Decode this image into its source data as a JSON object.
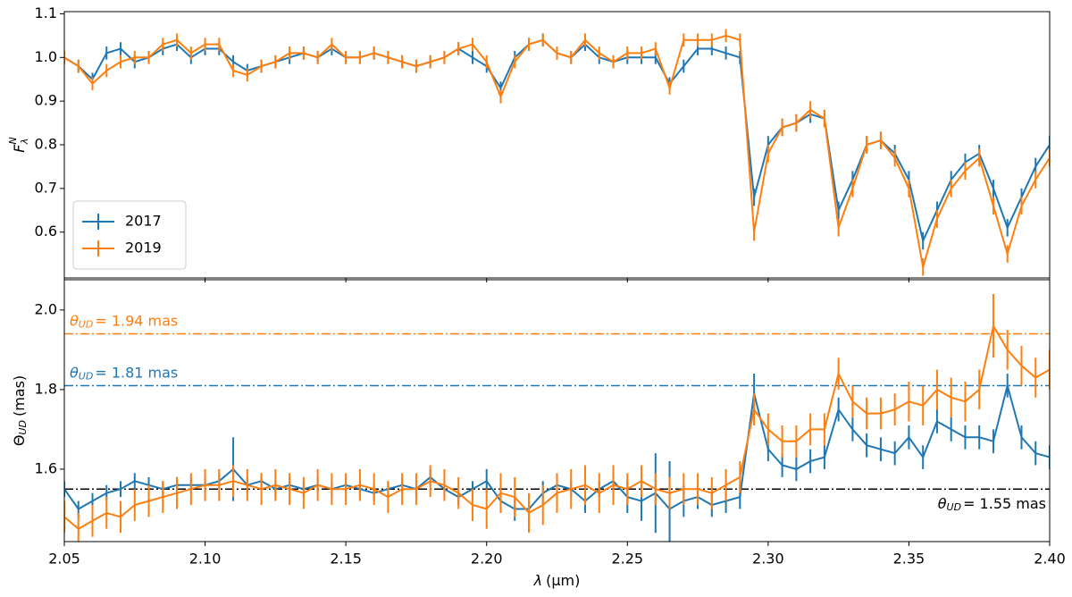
{
  "chart_data": [
    {
      "type": "line",
      "y_label": {
        "symbol": "F",
        "superscript": "N",
        "subscript": "λ"
      },
      "x": [
        2.05,
        2.055,
        2.06,
        2.065,
        2.07,
        2.075,
        2.08,
        2.085,
        2.09,
        2.095,
        2.1,
        2.105,
        2.11,
        2.115,
        2.12,
        2.125,
        2.13,
        2.135,
        2.14,
        2.145,
        2.15,
        2.155,
        2.16,
        2.165,
        2.17,
        2.175,
        2.18,
        2.185,
        2.19,
        2.195,
        2.2,
        2.205,
        2.21,
        2.215,
        2.22,
        2.225,
        2.23,
        2.235,
        2.24,
        2.245,
        2.25,
        2.255,
        2.26,
        2.265,
        2.27,
        2.275,
        2.28,
        2.285,
        2.29,
        2.295,
        2.3,
        2.305,
        2.31,
        2.315,
        2.32,
        2.325,
        2.33,
        2.335,
        2.34,
        2.345,
        2.35,
        2.355,
        2.36,
        2.365,
        2.37,
        2.375,
        2.38,
        2.385,
        2.39,
        2.395,
        2.4
      ],
      "series": [
        {
          "name": "2017",
          "color": "#1f77b4",
          "values": [
            1,
            0.98,
            0.95,
            1.01,
            1.02,
            0.99,
            1,
            1.02,
            1.03,
            1,
            1.02,
            1.02,
            0.99,
            0.97,
            0.98,
            0.99,
            1,
            1.01,
            1,
            1.02,
            1,
            1,
            1.01,
            1,
            0.99,
            0.98,
            0.99,
            1,
            1.02,
            1,
            0.98,
            0.93,
            1,
            1.03,
            1.04,
            1.01,
            1,
            1.03,
            1,
            0.99,
            1,
            1,
            1,
            0.94,
            0.98,
            1.02,
            1.02,
            1.01,
            1,
            0.68,
            0.8,
            0.84,
            0.85,
            0.87,
            0.86,
            0.65,
            0.72,
            0.8,
            0.81,
            0.78,
            0.72,
            0.58,
            0.65,
            0.72,
            0.76,
            0.78,
            0.7,
            0.61,
            0.68,
            0.75,
            0.8
          ],
          "errors": [
            0.015,
            0.015,
            0.015,
            0.015,
            0.015,
            0.015,
            0.015,
            0.015,
            0.015,
            0.015,
            0.015,
            0.015,
            0.015,
            0.015,
            0.015,
            0.015,
            0.015,
            0.015,
            0.015,
            0.015,
            0.015,
            0.015,
            0.015,
            0.015,
            0.015,
            0.015,
            0.015,
            0.015,
            0.015,
            0.015,
            0.015,
            0.015,
            0.015,
            0.015,
            0.015,
            0.015,
            0.015,
            0.015,
            0.015,
            0.015,
            0.015,
            0.015,
            0.015,
            0.015,
            0.015,
            0.015,
            0.015,
            0.015,
            0.015,
            0.02,
            0.02,
            0.02,
            0.02,
            0.02,
            0.02,
            0.02,
            0.02,
            0.02,
            0.02,
            0.02,
            0.02,
            0.02,
            0.02,
            0.02,
            0.02,
            0.02,
            0.02,
            0.02,
            0.02,
            0.02,
            0.02
          ]
        },
        {
          "name": "2019",
          "color": "#ff7f0e",
          "values": [
            1,
            0.98,
            0.94,
            0.97,
            0.99,
            1,
            1,
            1.03,
            1.04,
            1.01,
            1.03,
            1.03,
            0.97,
            0.96,
            0.98,
            0.99,
            1.01,
            1.01,
            1,
            1.03,
            1,
            1,
            1.01,
            1,
            0.99,
            0.98,
            0.99,
            1,
            1.02,
            1.03,
            0.99,
            0.91,
            0.99,
            1.03,
            1.04,
            1.01,
            1,
            1.04,
            1.01,
            0.99,
            1.01,
            1.01,
            1.02,
            0.93,
            1.04,
            1.04,
            1.04,
            1.05,
            1.04,
            0.6,
            0.78,
            0.84,
            0.85,
            0.88,
            0.86,
            0.61,
            0.7,
            0.8,
            0.81,
            0.77,
            0.7,
            0.52,
            0.63,
            0.7,
            0.74,
            0.77,
            0.66,
            0.55,
            0.66,
            0.72,
            0.77
          ],
          "errors": [
            0.015,
            0.015,
            0.015,
            0.015,
            0.015,
            0.015,
            0.015,
            0.015,
            0.015,
            0.015,
            0.015,
            0.015,
            0.015,
            0.015,
            0.015,
            0.015,
            0.015,
            0.015,
            0.015,
            0.015,
            0.015,
            0.015,
            0.015,
            0.015,
            0.015,
            0.015,
            0.015,
            0.015,
            0.015,
            0.015,
            0.015,
            0.015,
            0.015,
            0.015,
            0.015,
            0.015,
            0.015,
            0.015,
            0.015,
            0.015,
            0.015,
            0.015,
            0.015,
            0.015,
            0.015,
            0.015,
            0.015,
            0.015,
            0.015,
            0.02,
            0.02,
            0.02,
            0.02,
            0.02,
            0.02,
            0.02,
            0.02,
            0.02,
            0.02,
            0.02,
            0.02,
            0.02,
            0.02,
            0.02,
            0.02,
            0.02,
            0.02,
            0.02,
            0.02,
            0.02,
            0.02
          ]
        }
      ],
      "xlim": [
        2.05,
        2.4
      ],
      "ylim": [
        0.495,
        1.105
      ],
      "yticks": [
        0.6,
        0.7,
        0.8,
        0.9,
        {
          "value": 1,
          "label": "1.0"
        },
        1.1
      ],
      "legend": "lower left"
    },
    {
      "type": "line",
      "x_label": {
        "symbol": "λ",
        "unit": "(μm)"
      },
      "y_label": {
        "symbol": "Θ",
        "subscript": "UD",
        "unit": "(mas)"
      },
      "x": [
        2.05,
        2.055,
        2.06,
        2.065,
        2.07,
        2.075,
        2.08,
        2.085,
        2.09,
        2.095,
        2.1,
        2.105,
        2.11,
        2.115,
        2.12,
        2.125,
        2.13,
        2.135,
        2.14,
        2.145,
        2.15,
        2.155,
        2.16,
        2.165,
        2.17,
        2.175,
        2.18,
        2.185,
        2.19,
        2.195,
        2.2,
        2.205,
        2.21,
        2.215,
        2.22,
        2.225,
        2.23,
        2.235,
        2.24,
        2.245,
        2.25,
        2.255,
        2.26,
        2.265,
        2.27,
        2.275,
        2.28,
        2.285,
        2.29,
        2.295,
        2.3,
        2.305,
        2.31,
        2.315,
        2.32,
        2.325,
        2.33,
        2.335,
        2.34,
        2.345,
        2.35,
        2.355,
        2.36,
        2.365,
        2.37,
        2.375,
        2.38,
        2.385,
        2.39,
        2.395,
        2.4
      ],
      "series": [
        {
          "name": "2017",
          "color": "#1f77b4",
          "values": [
            1.55,
            1.5,
            1.52,
            1.54,
            1.55,
            1.57,
            1.56,
            1.55,
            1.56,
            1.56,
            1.56,
            1.57,
            1.6,
            1.56,
            1.57,
            1.55,
            1.56,
            1.55,
            1.56,
            1.55,
            1.56,
            1.55,
            1.54,
            1.55,
            1.56,
            1.55,
            1.58,
            1.55,
            1.53,
            1.55,
            1.57,
            1.52,
            1.5,
            1.5,
            1.54,
            1.56,
            1.55,
            1.52,
            1.55,
            1.57,
            1.53,
            1.52,
            1.54,
            1.5,
            1.52,
            1.53,
            1.51,
            1.52,
            1.53,
            1.79,
            1.65,
            1.61,
            1.6,
            1.62,
            1.63,
            1.75,
            1.7,
            1.66,
            1.65,
            1.64,
            1.68,
            1.63,
            1.72,
            1.7,
            1.68,
            1.68,
            1.67,
            1.81,
            1.68,
            1.64,
            1.63
          ],
          "errors": [
            0.02,
            0.02,
            0.02,
            0.02,
            0.02,
            0.02,
            0.02,
            0.02,
            0.02,
            0.02,
            0.02,
            0.02,
            0.08,
            0.02,
            0.02,
            0.02,
            0.02,
            0.02,
            0.02,
            0.02,
            0.02,
            0.02,
            0.02,
            0.02,
            0.02,
            0.02,
            0.02,
            0.02,
            0.02,
            0.02,
            0.03,
            0.03,
            0.03,
            0.03,
            0.03,
            0.02,
            0.02,
            0.03,
            0.02,
            0.02,
            0.04,
            0.05,
            0.1,
            0.12,
            0.04,
            0.03,
            0.03,
            0.03,
            0.03,
            0.05,
            0.03,
            0.03,
            0.03,
            0.03,
            0.03,
            0.03,
            0.03,
            0.03,
            0.03,
            0.03,
            0.03,
            0.03,
            0.03,
            0.03,
            0.03,
            0.03,
            0.03,
            0.03,
            0.03,
            0.03,
            0.03
          ]
        },
        {
          "name": "2019",
          "color": "#ff7f0e",
          "values": [
            1.48,
            1.45,
            1.47,
            1.49,
            1.48,
            1.51,
            1.52,
            1.53,
            1.54,
            1.55,
            1.56,
            1.56,
            1.57,
            1.56,
            1.55,
            1.56,
            1.55,
            1.54,
            1.56,
            1.55,
            1.55,
            1.56,
            1.55,
            1.53,
            1.55,
            1.55,
            1.57,
            1.56,
            1.54,
            1.51,
            1.5,
            1.54,
            1.53,
            1.49,
            1.51,
            1.54,
            1.55,
            1.56,
            1.54,
            1.56,
            1.55,
            1.57,
            1.55,
            1.54,
            1.55,
            1.55,
            1.54,
            1.56,
            1.58,
            1.75,
            1.7,
            1.67,
            1.67,
            1.7,
            1.7,
            1.84,
            1.77,
            1.74,
            1.74,
            1.75,
            1.77,
            1.76,
            1.8,
            1.78,
            1.77,
            1.8,
            1.96,
            1.9,
            1.86,
            1.83,
            1.85
          ],
          "errors": [
            0.04,
            0.04,
            0.04,
            0.04,
            0.04,
            0.04,
            0.04,
            0.04,
            0.04,
            0.04,
            0.04,
            0.04,
            0.04,
            0.04,
            0.04,
            0.04,
            0.04,
            0.04,
            0.04,
            0.04,
            0.04,
            0.04,
            0.04,
            0.04,
            0.04,
            0.04,
            0.04,
            0.04,
            0.04,
            0.04,
            0.05,
            0.05,
            0.05,
            0.05,
            0.05,
            0.05,
            0.05,
            0.05,
            0.05,
            0.05,
            0.04,
            0.04,
            0.04,
            0.04,
            0.04,
            0.04,
            0.04,
            0.04,
            0.04,
            0.04,
            0.04,
            0.04,
            0.04,
            0.04,
            0.04,
            0.04,
            0.04,
            0.04,
            0.04,
            0.04,
            0.05,
            0.05,
            0.05,
            0.05,
            0.05,
            0.05,
            0.08,
            0.05,
            0.05,
            0.05,
            0.05
          ]
        }
      ],
      "reference_lines": [
        {
          "value": 1.94,
          "color": "#ff7f0e",
          "label_symbol": "θ",
          "label_subscript": "UD",
          "label_text": "= 1.94 mas"
        },
        {
          "value": 1.81,
          "color": "#1f77b4",
          "label_symbol": "θ",
          "label_subscript": "UD",
          "label_text": "= 1.81 mas"
        },
        {
          "value": 1.55,
          "color": "#000000",
          "label_symbol": "θ",
          "label_subscript": "UD",
          "label_text": "=  1.55 mas"
        }
      ],
      "xlim": [
        2.05,
        2.4
      ],
      "ylim": [
        1.418,
        2.076
      ],
      "xticks": [
        2.05,
        {
          "value": 2.1,
          "label": "2.10"
        },
        2.15,
        {
          "value": 2.2,
          "label": "2.20"
        },
        2.25,
        {
          "value": 2.3,
          "label": "2.30"
        },
        2.35,
        {
          "value": 2.4,
          "label": "2.40"
        }
      ],
      "yticks": [
        1.6,
        1.8,
        {
          "value": 2,
          "label": "2.0"
        }
      ]
    }
  ]
}
